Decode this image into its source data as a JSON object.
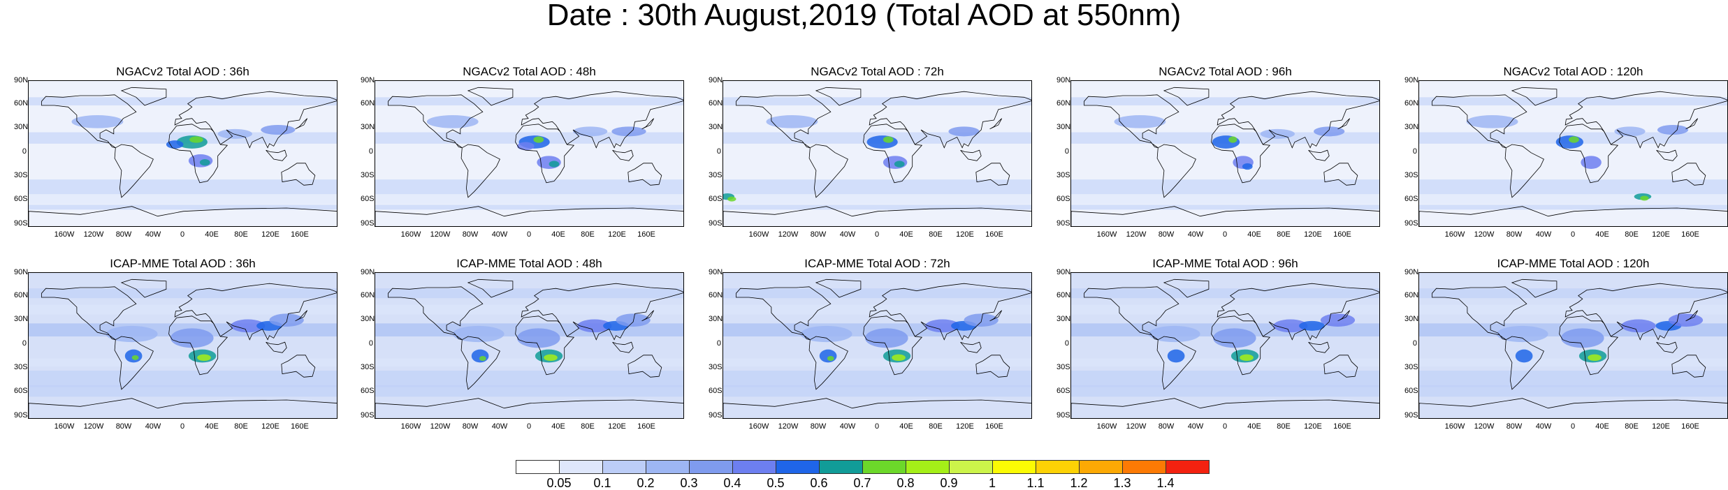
{
  "title": "Date : 30th August,2019 (Total AOD at 550nm)",
  "rows": [
    {
      "model": "NGACv2",
      "panels": [
        {
          "title": "NGACv2 Total AOD : 36h"
        },
        {
          "title": "NGACv2 Total AOD : 48h"
        },
        {
          "title": "NGACv2 Total AOD : 72h"
        },
        {
          "title": "NGACv2 Total AOD : 96h"
        },
        {
          "title": "NGACv2 Total AOD : 120h"
        }
      ]
    },
    {
      "model": "ICAP-MME",
      "panels": [
        {
          "title": "ICAP-MME Total AOD : 36h"
        },
        {
          "title": "ICAP-MME Total AOD : 48h"
        },
        {
          "title": "ICAP-MME Total AOD : 72h"
        },
        {
          "title": "ICAP-MME Total AOD : 96h"
        },
        {
          "title": "ICAP-MME Total AOD : 120h"
        }
      ]
    }
  ],
  "lat_labels": [
    "90N",
    "60N",
    "30N",
    "0",
    "30S",
    "60S",
    "90S"
  ],
  "lon_labels": [
    "160W",
    "120W",
    "80W",
    "40W",
    "0",
    "40E",
    "80E",
    "120E",
    "160E"
  ],
  "colorbar": {
    "levels": [
      "0.05",
      "0.1",
      "0.2",
      "0.3",
      "0.4",
      "0.5",
      "0.6",
      "0.7",
      "0.8",
      "0.9",
      "1",
      "1.1",
      "1.2",
      "1.3",
      "1.4"
    ],
    "colors": [
      "#ffffff",
      "#dfe7fb",
      "#bccdf7",
      "#9db6f3",
      "#7f9bee",
      "#6d7ff0",
      "#1f65e8",
      "#119c98",
      "#6cd82a",
      "#a5ef18",
      "#ccf44a",
      "#fbfb04",
      "#fdd205",
      "#fca904",
      "#fc7a04",
      "#f32210"
    ]
  }
}
